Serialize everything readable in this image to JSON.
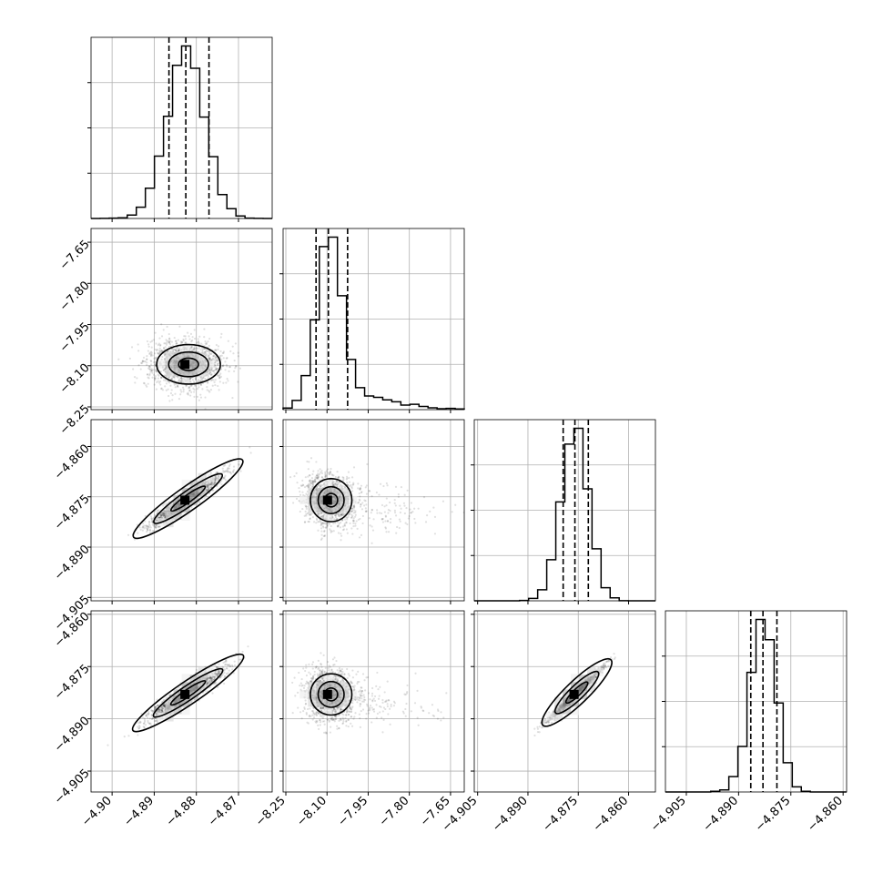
{
  "chart_data": {
    "type": "corner",
    "title": "",
    "grid": true,
    "parameters": [
      {
        "index": 0,
        "xlim": [
          -4.905,
          -4.862
        ],
        "xticks": [
          -4.9,
          -4.89,
          -4.88,
          -4.87
        ],
        "xtick_labels": [
          "−4.90",
          "−4.89",
          "−4.88",
          "−4.87"
        ],
        "mean": -4.8825,
        "sd": 0.0045,
        "quantiles": [
          -4.8865,
          -4.8825,
          -4.877
        ]
      },
      {
        "index": 1,
        "xlim": [
          -8.26,
          -7.6
        ],
        "xticks": [
          -8.25,
          -8.1,
          -7.95,
          -7.8,
          -7.65
        ],
        "xtick_labels": [
          "−8.25",
          "−8.10",
          "−7.95",
          "−7.80",
          "−7.65"
        ],
        "mean": -8.095,
        "sd": 0.045,
        "quantiles": [
          -8.14,
          -8.095,
          -8.025
        ],
        "skew_tail": true
      },
      {
        "index": 2,
        "xlim": [
          -4.906,
          -4.852
        ],
        "xticks": [
          -4.905,
          -4.89,
          -4.875,
          -4.86
        ],
        "xtick_labels": [
          "−4.905",
          "−4.890",
          "−4.875",
          "−4.860"
        ],
        "mean": -4.876,
        "sd": 0.004,
        "quantiles": [
          -4.8795,
          -4.876,
          -4.872
        ]
      },
      {
        "index": 3,
        "xlim": [
          -4.911,
          -4.859
        ],
        "xticks": [
          -4.905,
          -4.89,
          -4.875,
          -4.86
        ],
        "xtick_labels": [
          "−4.905",
          "−4.890",
          "−4.875",
          "−4.860"
        ],
        "mean": -4.883,
        "sd": 0.0037,
        "quantiles": [
          -4.8865,
          -4.883,
          -4.879
        ]
      }
    ],
    "row_ylabels": {
      "1": {
        "ylim": [
          -8.26,
          -7.6
        ],
        "ticks": [
          -8.25,
          -8.1,
          -7.95,
          -7.8,
          -7.65
        ],
        "labels": [
          "−8.25",
          "−8.10",
          "−7.95",
          "−7.80",
          "−7.65"
        ]
      },
      "2": {
        "ylim": [
          -4.906,
          -4.852
        ],
        "ticks": [
          -4.905,
          -4.89,
          -4.875,
          -4.86
        ],
        "labels": [
          "−4.905",
          "−4.890",
          "−4.875",
          "−4.860"
        ]
      },
      "3": {
        "ylim": [
          -4.911,
          -4.859
        ],
        "ticks": [
          -4.905,
          -4.89,
          -4.875,
          -4.86
        ],
        "labels": [
          "−4.905",
          "−4.890",
          "−4.875",
          "−4.860"
        ]
      }
    },
    "correlations": {
      "1-0": 0.0,
      "2-0": 0.95,
      "2-1": -0.15,
      "3-0": 0.93,
      "3-1": -0.12,
      "3-2": 0.985
    },
    "colors": {
      "samples": "#000000",
      "grid": "#b0b0b0"
    }
  }
}
